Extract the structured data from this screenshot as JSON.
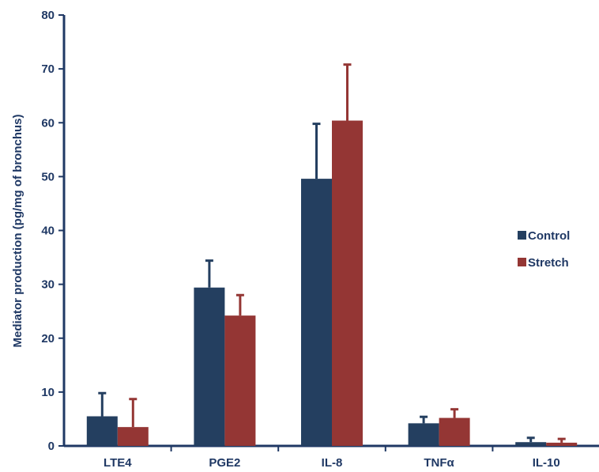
{
  "chart_data": {
    "type": "bar",
    "title": "",
    "xlabel": "",
    "ylabel": "Mediator production (pg/mg of bronchus)",
    "ylim": [
      0,
      80
    ],
    "yticks": [
      0,
      10,
      20,
      30,
      40,
      50,
      60,
      70,
      80
    ],
    "categories": [
      "LTE4",
      "PGE2",
      "IL-8",
      "TNFα",
      "IL-10"
    ],
    "series": [
      {
        "name": "Control",
        "color": "#243f60",
        "values": [
          5.5,
          29.4,
          49.6,
          4.2,
          0.7
        ],
        "errors": [
          4.3,
          5.0,
          10.2,
          1.2,
          0.8
        ]
      },
      {
        "name": "Stretch",
        "color": "#943634",
        "values": [
          3.5,
          24.2,
          60.4,
          5.2,
          0.6
        ],
        "errors": [
          5.2,
          3.8,
          10.4,
          1.6,
          0.7
        ]
      }
    ],
    "grid": false,
    "legend_position": "right"
  }
}
